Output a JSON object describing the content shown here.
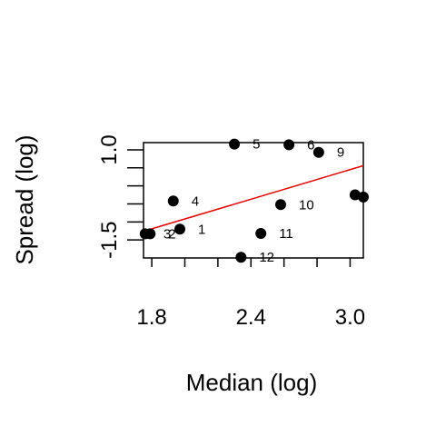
{
  "chart_data": {
    "type": "scatter",
    "title": "",
    "xlabel": "Median (log)",
    "ylabel": "Spread (log)",
    "xlim": [
      1.75,
      3.08
    ],
    "ylim": [
      -2.0,
      1.2
    ],
    "x_ticks": [
      1.8,
      2.4,
      3.0
    ],
    "x_tick_labels": [
      "1.8",
      "2.4",
      "3.0"
    ],
    "y_ticks": [
      -1.5,
      1.0
    ],
    "y_tick_labels": [
      "-1.5",
      "1.0"
    ],
    "grid": false,
    "points": [
      {
        "label": "1",
        "x": 1.97,
        "y": -1.2
      },
      {
        "label": "2",
        "x": 1.79,
        "y": -1.33
      },
      {
        "label": "3",
        "x": 1.76,
        "y": -1.33
      },
      {
        "label": "4",
        "x": 1.93,
        "y": -0.42
      },
      {
        "label": "5",
        "x": 2.3,
        "y": 1.16
      },
      {
        "label": "6",
        "x": 2.63,
        "y": 1.14
      },
      {
        "label": "9",
        "x": 2.81,
        "y": 0.93
      },
      {
        "label": "10",
        "x": 2.58,
        "y": -0.52
      },
      {
        "label": "11",
        "x": 2.46,
        "y": -1.32
      },
      {
        "label": "12",
        "x": 2.34,
        "y": -1.98
      },
      {
        "label": "",
        "x": 3.03,
        "y": -0.25
      },
      {
        "label": "",
        "x": 3.08,
        "y": -0.31
      }
    ],
    "fit_line": {
      "x": [
        1.75,
        3.08
      ],
      "y": [
        -1.26,
        0.56
      ],
      "color": "#dd0000"
    },
    "point_color": "#000000"
  }
}
